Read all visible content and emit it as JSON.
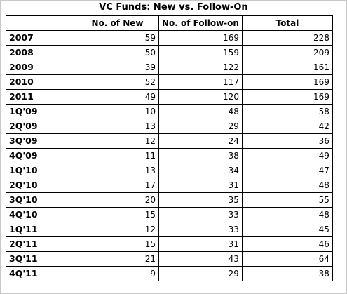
{
  "chart_data": {
    "type": "table",
    "title": "VC Funds: New vs. Follow-On",
    "columns": [
      "",
      "No. of New",
      "No. of Follow-on",
      "Total"
    ],
    "rows": [
      {
        "label": "2007",
        "values": [
          59,
          169,
          228
        ]
      },
      {
        "label": "2008",
        "values": [
          50,
          159,
          209
        ]
      },
      {
        "label": "2009",
        "values": [
          39,
          122,
          161
        ]
      },
      {
        "label": "2010",
        "values": [
          52,
          117,
          169
        ]
      },
      {
        "label": "2011",
        "values": [
          49,
          120,
          169
        ]
      },
      {
        "label": "1Q'09",
        "values": [
          10,
          48,
          58
        ]
      },
      {
        "label": "2Q'09",
        "values": [
          13,
          29,
          42
        ]
      },
      {
        "label": "3Q'09",
        "values": [
          12,
          24,
          36
        ]
      },
      {
        "label": "4Q'09",
        "values": [
          11,
          38,
          49
        ]
      },
      {
        "label": "1Q'10",
        "values": [
          13,
          34,
          47
        ]
      },
      {
        "label": "2Q'10",
        "values": [
          17,
          31,
          48
        ]
      },
      {
        "label": "3Q'10",
        "values": [
          20,
          35,
          55
        ]
      },
      {
        "label": "4Q'10",
        "values": [
          15,
          33,
          48
        ]
      },
      {
        "label": "1Q'11",
        "values": [
          12,
          33,
          45
        ]
      },
      {
        "label": "2Q'11",
        "values": [
          15,
          31,
          46
        ]
      },
      {
        "label": "3Q'11",
        "values": [
          21,
          43,
          64
        ]
      },
      {
        "label": "4Q'11",
        "values": [
          9,
          29,
          38
        ]
      }
    ]
  }
}
